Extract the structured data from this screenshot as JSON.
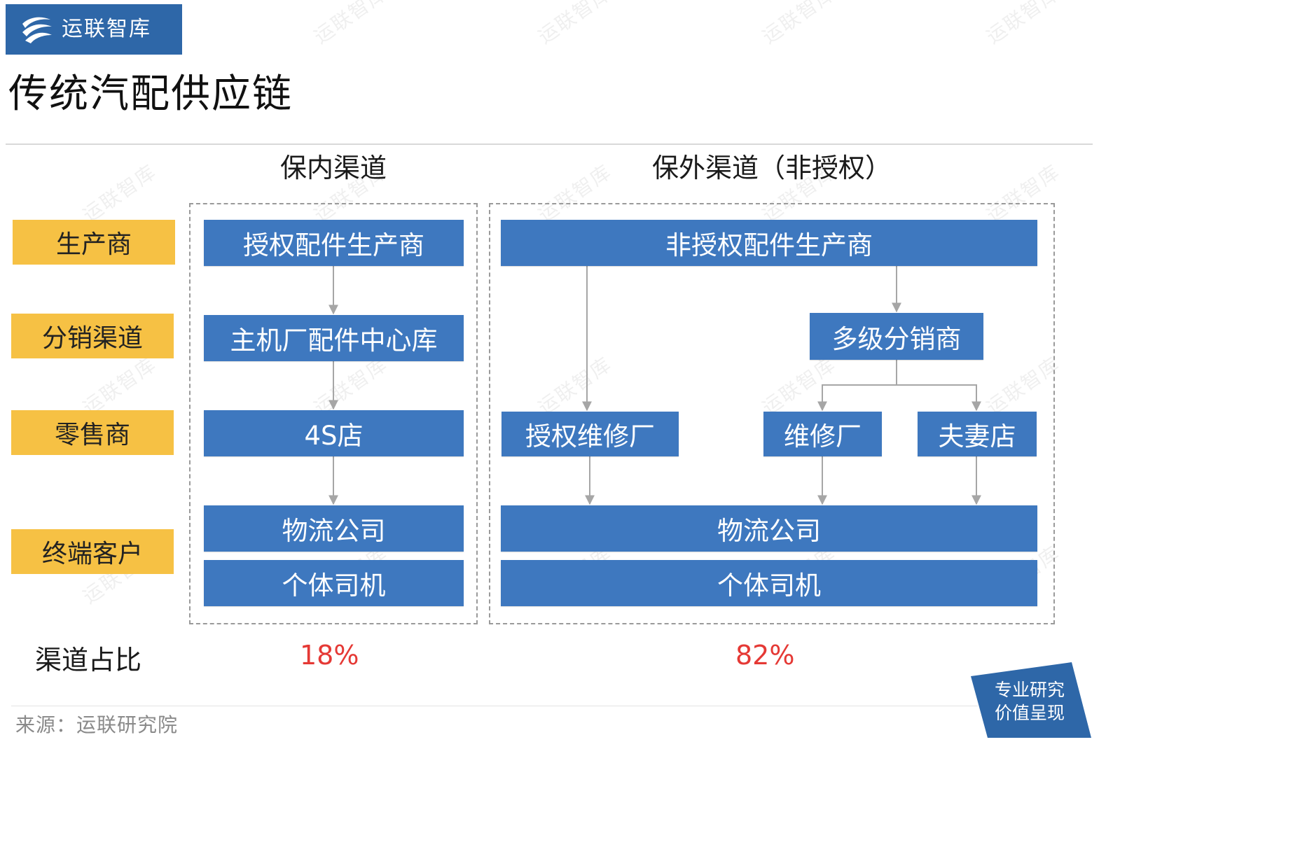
{
  "header": {
    "brand_name": "运联智库",
    "title": "传统汽配供应链"
  },
  "columns": {
    "in_warranty": "保内渠道",
    "out_warranty": "保外渠道（非授权）"
  },
  "stages": [
    "生产商",
    "分销渠道",
    "零售商",
    "终端客户"
  ],
  "in_channel": {
    "manufacturer": "授权配件生产商",
    "distribution": "主机厂配件中心库",
    "retail": "4S店",
    "logistics": "物流公司",
    "driver": "个体司机"
  },
  "out_channel": {
    "manufacturer": "非授权配件生产商",
    "distributor": "多级分销商",
    "authorized_repair": "授权维修厂",
    "repair": "维修厂",
    "shop": "夫妻店",
    "logistics": "物流公司",
    "driver": "个体司机"
  },
  "share": {
    "label": "渠道占比",
    "in_value": "18%",
    "out_value": "82%",
    "value_color": "#e53935"
  },
  "watermark": "运联智库",
  "source": "来源：运联研究院",
  "badge": {
    "line1": "专业研究",
    "line2": "价值呈现",
    "color": "#2e67a8"
  },
  "colors": {
    "node": "#3e78bf",
    "stage": "#f6c144",
    "arrow": "#a6a6a6"
  }
}
